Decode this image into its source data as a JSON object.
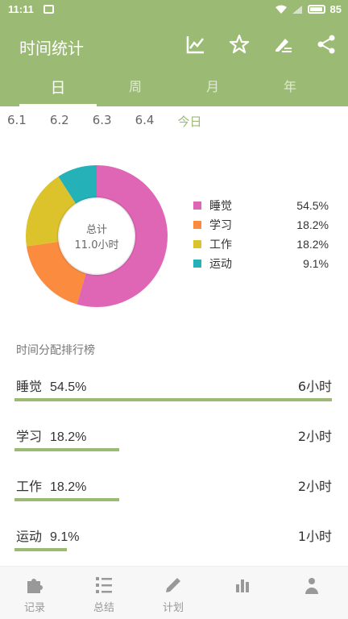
{
  "status": {
    "time": "11:11",
    "battery": "85"
  },
  "appbar": {
    "title": "时间统计",
    "actions": [
      {
        "name": "trend-icon"
      },
      {
        "name": "star-icon"
      },
      {
        "name": "edit-icon"
      },
      {
        "name": "share-icon"
      }
    ]
  },
  "tabs": [
    {
      "label": "日",
      "active": true
    },
    {
      "label": "周",
      "active": false
    },
    {
      "label": "月",
      "active": false
    },
    {
      "label": "年",
      "active": false
    }
  ],
  "dates": [
    "6.1",
    "6.2",
    "6.3",
    "6.4",
    "今日"
  ],
  "summary": {
    "label": "总计",
    "value": "11.0小时"
  },
  "chart_data": {
    "type": "pie",
    "categories": [
      "睡觉",
      "学习",
      "工作",
      "运动"
    ],
    "values": [
      54.5,
      18.2,
      18.2,
      9.1
    ],
    "labels": [
      "54.5%",
      "18.2%",
      "18.2%",
      "9.1%"
    ],
    "colors": [
      "#de66b5",
      "#fb8c3f",
      "#dcc32b",
      "#24b1b8"
    ]
  },
  "ranking": {
    "title": "时间分配排行榜",
    "items": [
      {
        "name": "睡觉",
        "percent": "54.5%",
        "duration": "6小时",
        "fraction": 1.0
      },
      {
        "name": "学习",
        "percent": "18.2%",
        "duration": "2小时",
        "fraction": 0.33
      },
      {
        "name": "工作",
        "percent": "18.2%",
        "duration": "2小时",
        "fraction": 0.33
      },
      {
        "name": "运动",
        "percent": "9.1%",
        "duration": "1小时",
        "fraction": 0.165
      }
    ]
  },
  "nav": [
    {
      "label": "记录",
      "icon": "puzzle-icon"
    },
    {
      "label": "总结",
      "icon": "list-icon"
    },
    {
      "label": "计划",
      "icon": "pencil-icon"
    },
    {
      "label": "",
      "icon": "stats-icon"
    },
    {
      "label": "",
      "icon": "more-icon"
    }
  ]
}
